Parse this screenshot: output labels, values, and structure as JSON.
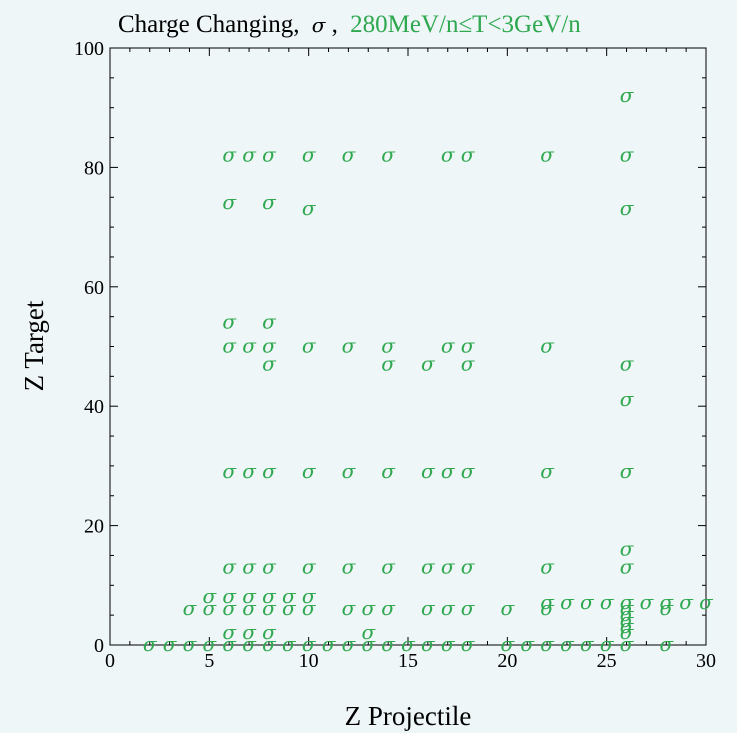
{
  "chart_data": {
    "type": "scatter",
    "title": "Charge Changing, σ, 280MeV/n≤T<3GeV/n",
    "title_parts": {
      "prefix": "Charge Changing,",
      "symbol": "σ",
      "range": "280MeV/n≤T<3GeV/n"
    },
    "xlabel": "Z  Projectile",
    "ylabel": "Z  Target",
    "xlim": [
      0,
      30
    ],
    "ylim": [
      0,
      100
    ],
    "xticks": [
      "0",
      "5",
      "10",
      "15",
      "20",
      "25",
      "30"
    ],
    "yticks": [
      "0",
      "20",
      "40",
      "60",
      "80",
      "100"
    ],
    "grid": false,
    "marker_symbol": "σ",
    "colors": {
      "marker": "#2fa84f",
      "title_range": "#2fa84f",
      "background": "#eef6f8",
      "frame": "#000000"
    },
    "points": [
      [
        6,
        82
      ],
      [
        7,
        82
      ],
      [
        8,
        82
      ],
      [
        10,
        82
      ],
      [
        12,
        82
      ],
      [
        14,
        82
      ],
      [
        17,
        82
      ],
      [
        18,
        82
      ],
      [
        22,
        82
      ],
      [
        26,
        82
      ],
      [
        26,
        92
      ],
      [
        6,
        74
      ],
      [
        8,
        74
      ],
      [
        10,
        73
      ],
      [
        26,
        73
      ],
      [
        6,
        54
      ],
      [
        8,
        54
      ],
      [
        6,
        50
      ],
      [
        7,
        50
      ],
      [
        8,
        50
      ],
      [
        10,
        50
      ],
      [
        12,
        50
      ],
      [
        14,
        50
      ],
      [
        17,
        50
      ],
      [
        18,
        50
      ],
      [
        22,
        50
      ],
      [
        8,
        47
      ],
      [
        14,
        47
      ],
      [
        16,
        47
      ],
      [
        18,
        47
      ],
      [
        26,
        47
      ],
      [
        26,
        41
      ],
      [
        6,
        29
      ],
      [
        7,
        29
      ],
      [
        8,
        29
      ],
      [
        10,
        29
      ],
      [
        12,
        29
      ],
      [
        14,
        29
      ],
      [
        16,
        29
      ],
      [
        17,
        29
      ],
      [
        18,
        29
      ],
      [
        22,
        29
      ],
      [
        26,
        29
      ],
      [
        26,
        16
      ],
      [
        6,
        13
      ],
      [
        7,
        13
      ],
      [
        8,
        13
      ],
      [
        10,
        13
      ],
      [
        12,
        13
      ],
      [
        14,
        13
      ],
      [
        16,
        13
      ],
      [
        17,
        13
      ],
      [
        18,
        13
      ],
      [
        22,
        13
      ],
      [
        26,
        13
      ],
      [
        5,
        8
      ],
      [
        6,
        8
      ],
      [
        7,
        8
      ],
      [
        8,
        8
      ],
      [
        9,
        8
      ],
      [
        10,
        8
      ],
      [
        4,
        6
      ],
      [
        5,
        6
      ],
      [
        6,
        6
      ],
      [
        7,
        6
      ],
      [
        8,
        6
      ],
      [
        9,
        6
      ],
      [
        10,
        6
      ],
      [
        12,
        6
      ],
      [
        13,
        6
      ],
      [
        14,
        6
      ],
      [
        16,
        6
      ],
      [
        17,
        6
      ],
      [
        18,
        6
      ],
      [
        20,
        6
      ],
      [
        22,
        6
      ],
      [
        22,
        7
      ],
      [
        23,
        7
      ],
      [
        24,
        7
      ],
      [
        25,
        7
      ],
      [
        26,
        7
      ],
      [
        27,
        7
      ],
      [
        28,
        7
      ],
      [
        29,
        7
      ],
      [
        30,
        7
      ],
      [
        26,
        6
      ],
      [
        26,
        5
      ],
      [
        26,
        4
      ],
      [
        26,
        3
      ],
      [
        26,
        2
      ],
      [
        28,
        6
      ],
      [
        6,
        2
      ],
      [
        7,
        2
      ],
      [
        8,
        2
      ],
      [
        13,
        2
      ],
      [
        2,
        0
      ],
      [
        3,
        0
      ],
      [
        4,
        0
      ],
      [
        5,
        0
      ],
      [
        6,
        0
      ],
      [
        7,
        0
      ],
      [
        8,
        0
      ],
      [
        9,
        0
      ],
      [
        10,
        0
      ],
      [
        11,
        0
      ],
      [
        12,
        0
      ],
      [
        13,
        0
      ],
      [
        14,
        0
      ],
      [
        15,
        0
      ],
      [
        16,
        0
      ],
      [
        17,
        0
      ],
      [
        18,
        0
      ],
      [
        20,
        0
      ],
      [
        21,
        0
      ],
      [
        22,
        0
      ],
      [
        23,
        0
      ],
      [
        24,
        0
      ],
      [
        25,
        0
      ],
      [
        26,
        0
      ],
      [
        28,
        0
      ]
    ]
  }
}
